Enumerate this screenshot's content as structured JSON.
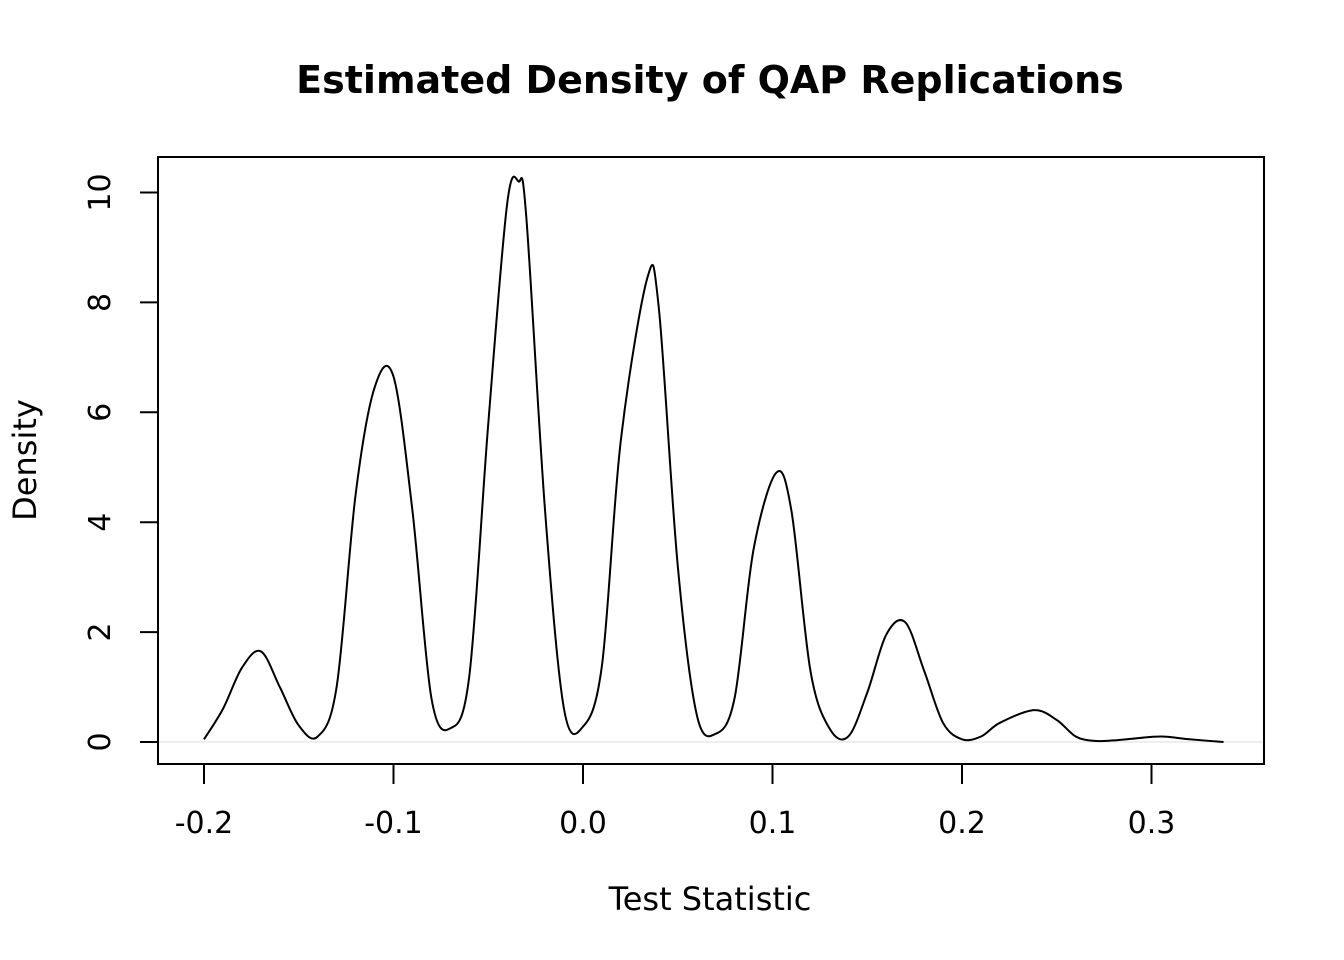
{
  "chart_data": {
    "type": "line",
    "title": "Estimated Density of QAP Replications",
    "xlabel": "Test Statistic",
    "ylabel": "Density",
    "xlim": [
      -0.2,
      0.34
    ],
    "ylim": [
      0,
      10.2
    ],
    "x_ticks": [
      -0.2,
      -0.1,
      0.0,
      0.1,
      0.2,
      0.3
    ],
    "x_tick_labels": [
      "-0.2",
      "-0.1",
      "0.0",
      "0.1",
      "0.2",
      "0.3"
    ],
    "y_ticks": [
      0,
      2,
      4,
      6,
      8,
      10
    ],
    "y_tick_labels": [
      "0",
      "2",
      "4",
      "6",
      "8",
      "10"
    ],
    "grid": false,
    "series": [
      {
        "x": [
          -0.2,
          -0.19,
          -0.18,
          -0.17,
          -0.16,
          -0.15,
          -0.14,
          -0.13,
          -0.12,
          -0.11,
          -0.1,
          -0.09,
          -0.08,
          -0.07,
          -0.06,
          -0.05,
          -0.04,
          -0.034,
          -0.03,
          -0.02,
          -0.01,
          0.0,
          0.01,
          0.02,
          0.034,
          0.04,
          0.05,
          0.06,
          0.07,
          0.08,
          0.09,
          0.102,
          0.11,
          0.12,
          0.13,
          0.14,
          0.15,
          0.16,
          0.17,
          0.18,
          0.19,
          0.2,
          0.21,
          0.22,
          0.238,
          0.25,
          0.26,
          0.27,
          0.28,
          0.29,
          0.305,
          0.32,
          0.338
        ],
        "y": [
          0.05,
          0.6,
          1.35,
          1.65,
          1.0,
          0.3,
          0.1,
          1.0,
          4.5,
          6.45,
          6.65,
          4.2,
          0.8,
          0.25,
          1.2,
          5.8,
          9.8,
          10.2,
          9.6,
          4.2,
          0.6,
          0.28,
          1.4,
          5.5,
          8.45,
          7.9,
          3.2,
          0.5,
          0.15,
          0.8,
          3.5,
          4.9,
          4.2,
          1.3,
          0.25,
          0.1,
          0.9,
          1.95,
          2.18,
          1.3,
          0.35,
          0.05,
          0.1,
          0.35,
          0.58,
          0.4,
          0.1,
          0.02,
          0.03,
          0.06,
          0.1,
          0.05,
          0.0
        ]
      }
    ]
  }
}
